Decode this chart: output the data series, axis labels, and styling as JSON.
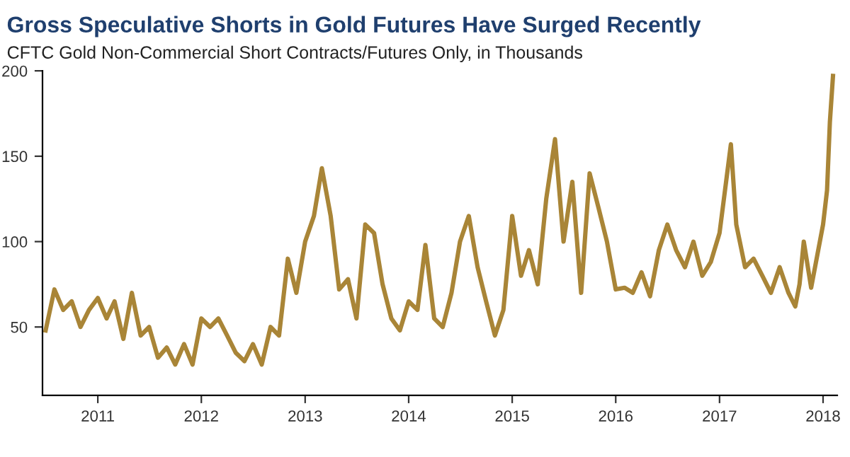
{
  "chart_data": {
    "type": "line",
    "title": "Gross Speculative Shorts in Gold Futures Have Surged Recently",
    "subtitle": "CFTC Gold Non-Commercial Short Contracts/Futures Only, in Thousands",
    "x": [
      "2010-07-01",
      "2010-08-01",
      "2010-09-01",
      "2010-10-01",
      "2010-11-01",
      "2010-12-01",
      "2011-01-01",
      "2011-02-01",
      "2011-03-01",
      "2011-04-01",
      "2011-05-01",
      "2011-06-01",
      "2011-07-01",
      "2011-08-01",
      "2011-09-01",
      "2011-10-01",
      "2011-11-01",
      "2011-12-01",
      "2012-01-01",
      "2012-02-01",
      "2012-03-01",
      "2012-04-01",
      "2012-05-01",
      "2012-06-01",
      "2012-07-01",
      "2012-08-01",
      "2012-09-01",
      "2012-10-01",
      "2012-11-01",
      "2012-12-01",
      "2013-01-01",
      "2013-02-01",
      "2013-03-01",
      "2013-04-01",
      "2013-05-01",
      "2013-06-01",
      "2013-07-01",
      "2013-08-01",
      "2013-09-01",
      "2013-10-01",
      "2013-11-01",
      "2013-12-01",
      "2014-01-01",
      "2014-02-01",
      "2014-03-01",
      "2014-04-01",
      "2014-05-01",
      "2014-06-01",
      "2014-07-01",
      "2014-08-01",
      "2014-09-01",
      "2014-10-01",
      "2014-11-01",
      "2014-12-01",
      "2015-01-01",
      "2015-02-01",
      "2015-03-01",
      "2015-04-01",
      "2015-05-01",
      "2015-06-01",
      "2015-07-01",
      "2015-08-01",
      "2015-09-01",
      "2015-10-01",
      "2015-11-01",
      "2015-12-01",
      "2016-01-01",
      "2016-02-01",
      "2016-03-01",
      "2016-04-01",
      "2016-05-01",
      "2016-06-01",
      "2016-07-01",
      "2016-08-01",
      "2016-09-01",
      "2016-10-01",
      "2016-11-01",
      "2016-12-01",
      "2017-01-01",
      "2017-02-10",
      "2017-03-01",
      "2017-04-01",
      "2017-05-01",
      "2017-06-01",
      "2017-07-01",
      "2017-08-01",
      "2017-09-01",
      "2017-09-25",
      "2017-10-10",
      "2017-10-25",
      "2017-11-20",
      "2018-01-01",
      "2018-01-15",
      "2018-01-25",
      "2018-02-05"
    ],
    "series": [
      {
        "color": "#a98537",
        "values": [
          48,
          72,
          60,
          65,
          50,
          60,
          67,
          55,
          65,
          43,
          70,
          45,
          50,
          32,
          38,
          28,
          40,
          28,
          55,
          50,
          55,
          45,
          35,
          30,
          40,
          28,
          50,
          45,
          90,
          70,
          100,
          115,
          143,
          115,
          72,
          78,
          55,
          110,
          105,
          75,
          55,
          48,
          65,
          60,
          98,
          55,
          50,
          70,
          100,
          115,
          85,
          65,
          45,
          60,
          115,
          80,
          95,
          75,
          125,
          160,
          100,
          135,
          70,
          140,
          120,
          100,
          72,
          73,
          70,
          82,
          68,
          95,
          110,
          95,
          85,
          100,
          80,
          88,
          105,
          157,
          110,
          85,
          90,
          80,
          70,
          85,
          70,
          62,
          75,
          100,
          73,
          110,
          130,
          170,
          197
        ]
      }
    ],
    "ylim": [
      10,
      200
    ],
    "yticks": [
      50,
      100,
      150,
      200
    ],
    "xlim": [
      "2010-06-20",
      "2018-02-20"
    ],
    "xticks": [
      {
        "value": "2011-01-01",
        "label": "2011"
      },
      {
        "value": "2012-01-01",
        "label": "2012"
      },
      {
        "value": "2013-01-01",
        "label": "2013"
      },
      {
        "value": "2014-01-01",
        "label": "2014"
      },
      {
        "value": "2015-01-01",
        "label": "2015"
      },
      {
        "value": "2016-01-01",
        "label": "2016"
      },
      {
        "value": "2017-01-01",
        "label": "2017"
      },
      {
        "value": "2018-01-01",
        "label": "2018"
      }
    ],
    "grid": false,
    "legend": false,
    "marker": "none",
    "line_style": "solid"
  }
}
